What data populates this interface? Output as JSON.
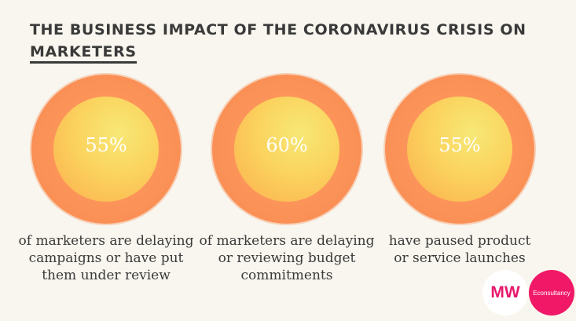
{
  "header": {
    "title_line1": "THE BUSINESS IMPACT OF THE CORONAVIRUS CRISIS ON",
    "title_line2": "MARKETERS"
  },
  "stats": [
    {
      "value": "55%",
      "desc_lines": [
        "of marketers are delaying",
        "campaigns or have put",
        "them under review"
      ]
    },
    {
      "value": "60%",
      "desc_lines": [
        "of marketers are delaying",
        "or reviewing budget",
        "commitments"
      ]
    },
    {
      "value": "55%",
      "desc_lines": [
        "have paused product",
        "or service launches"
      ]
    }
  ],
  "logos": {
    "mw": "MW",
    "econsultancy": "Econsultancy"
  },
  "colors": {
    "background": "#f8f6ee",
    "ring": "#fb9257",
    "inner_center": "#f7e876",
    "title": "#3a3a3a",
    "brand_pink": "#f01867"
  }
}
